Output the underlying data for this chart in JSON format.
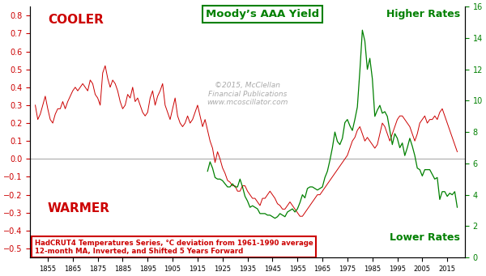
{
  "title": "Moody’s AAA Yield",
  "subtitle_line1": "©2015, McClellan",
  "subtitle_line2": "Financial Publications",
  "subtitle_line3": "www.mcoscillator.com",
  "label_cooler": "COOLER",
  "label_warmer": "WARMER",
  "label_higher": "Higher Rates",
  "label_lower": "Lower Rates",
  "caption_line1": "HadCRUT4 Temperatures Series, °C deviation from 1961-1990 average",
  "caption_line2": "12-month MA, Inverted, and Shifted 5 Years Forward",
  "left_ylim": [
    -0.55,
    0.85
  ],
  "right_ylim": [
    0,
    16
  ],
  "left_yticks": [
    -0.5,
    -0.4,
    -0.3,
    -0.2,
    -0.1,
    0,
    0.1,
    0.2,
    0.3,
    0.4,
    0.5,
    0.6,
    0.7,
    0.8
  ],
  "right_yticks": [
    0,
    2,
    4,
    6,
    8,
    10,
    12,
    14,
    16
  ],
  "color_red": "#CC0000",
  "color_green": "#008000",
  "color_gray": "#AAAAAA",
  "background": "#FFFFFF",
  "zero_line_color": "#AAAAAA",
  "temp_years": [
    1850,
    1851,
    1852,
    1853,
    1854,
    1855,
    1856,
    1857,
    1858,
    1859,
    1860,
    1861,
    1862,
    1863,
    1864,
    1865,
    1866,
    1867,
    1868,
    1869,
    1870,
    1871,
    1872,
    1873,
    1874,
    1875,
    1876,
    1877,
    1878,
    1879,
    1880,
    1881,
    1882,
    1883,
    1884,
    1885,
    1886,
    1887,
    1888,
    1889,
    1890,
    1891,
    1892,
    1893,
    1894,
    1895,
    1896,
    1897,
    1898,
    1899,
    1900,
    1901,
    1902,
    1903,
    1904,
    1905,
    1906,
    1907,
    1908,
    1909,
    1910,
    1911,
    1912,
    1913,
    1914,
    1915,
    1916,
    1917,
    1918,
    1919,
    1920,
    1921,
    1922,
    1923,
    1924,
    1925,
    1926,
    1927,
    1928,
    1929,
    1930,
    1931,
    1932,
    1933,
    1934,
    1935,
    1936,
    1937,
    1938,
    1939,
    1940,
    1941,
    1942,
    1943,
    1944,
    1945,
    1946,
    1947,
    1948,
    1949,
    1950,
    1951,
    1952,
    1953,
    1954,
    1955,
    1956,
    1957,
    1958,
    1959,
    1960,
    1961,
    1962,
    1963,
    1964,
    1965,
    1966,
    1967,
    1968,
    1969,
    1970,
    1971,
    1972,
    1973,
    1974,
    1975,
    1976,
    1977,
    1978,
    1979,
    1980,
    1981,
    1982,
    1983,
    1984,
    1985,
    1986,
    1987,
    1988,
    1989,
    1990,
    1991,
    1992,
    1993,
    1994,
    1995,
    1996,
    1997,
    1998,
    1999,
    2000,
    2001,
    2002,
    2003,
    2004,
    2005,
    2006,
    2007,
    2008,
    2009,
    2010,
    2011,
    2012,
    2013,
    2014,
    2015,
    2016,
    2017,
    2018,
    2019
  ],
  "temp_vals": [
    0.3,
    0.22,
    0.25,
    0.3,
    0.35,
    0.28,
    0.22,
    0.2,
    0.25,
    0.28,
    0.28,
    0.32,
    0.28,
    0.32,
    0.35,
    0.38,
    0.4,
    0.38,
    0.4,
    0.42,
    0.4,
    0.38,
    0.44,
    0.42,
    0.36,
    0.34,
    0.3,
    0.48,
    0.52,
    0.45,
    0.4,
    0.44,
    0.42,
    0.38,
    0.32,
    0.28,
    0.3,
    0.36,
    0.34,
    0.4,
    0.32,
    0.34,
    0.3,
    0.26,
    0.24,
    0.26,
    0.34,
    0.38,
    0.3,
    0.35,
    0.38,
    0.42,
    0.3,
    0.26,
    0.22,
    0.28,
    0.34,
    0.24,
    0.2,
    0.18,
    0.2,
    0.24,
    0.2,
    0.22,
    0.26,
    0.3,
    0.24,
    0.18,
    0.22,
    0.16,
    0.1,
    0.06,
    -0.02,
    0.04,
    0.0,
    -0.05,
    -0.08,
    -0.12,
    -0.13,
    -0.15,
    -0.15,
    -0.18,
    -0.18,
    -0.15,
    -0.15,
    -0.18,
    -0.2,
    -0.22,
    -0.22,
    -0.24,
    -0.26,
    -0.22,
    -0.22,
    -0.2,
    -0.18,
    -0.2,
    -0.22,
    -0.25,
    -0.26,
    -0.28,
    -0.28,
    -0.26,
    -0.24,
    -0.26,
    -0.28,
    -0.3,
    -0.32,
    -0.32,
    -0.3,
    -0.28,
    -0.26,
    -0.24,
    -0.22,
    -0.2,
    -0.2,
    -0.18,
    -0.16,
    -0.14,
    -0.12,
    -0.1,
    -0.08,
    -0.06,
    -0.04,
    -0.02,
    0.0,
    0.02,
    0.06,
    0.1,
    0.12,
    0.16,
    0.18,
    0.14,
    0.1,
    0.12,
    0.1,
    0.08,
    0.06,
    0.08,
    0.14,
    0.2,
    0.18,
    0.14,
    0.1,
    0.14,
    0.18,
    0.22,
    0.24,
    0.24,
    0.22,
    0.2,
    0.18,
    0.14,
    0.1,
    0.14,
    0.2,
    0.22,
    0.24,
    0.2,
    0.22,
    0.22,
    0.24,
    0.22,
    0.26,
    0.28,
    0.24,
    0.2,
    0.16,
    0.12,
    0.08,
    0.04
  ],
  "bond_years": [
    1919,
    1920,
    1921,
    1922,
    1923,
    1924,
    1925,
    1926,
    1927,
    1928,
    1929,
    1930,
    1931,
    1932,
    1933,
    1934,
    1935,
    1936,
    1937,
    1938,
    1939,
    1940,
    1941,
    1942,
    1943,
    1944,
    1945,
    1946,
    1947,
    1948,
    1949,
    1950,
    1951,
    1952,
    1953,
    1954,
    1955,
    1956,
    1957,
    1958,
    1959,
    1960,
    1961,
    1962,
    1963,
    1964,
    1965,
    1966,
    1967,
    1968,
    1969,
    1970,
    1971,
    1972,
    1973,
    1974,
    1975,
    1976,
    1977,
    1978,
    1979,
    1980,
    1981,
    1982,
    1983,
    1984,
    1985,
    1986,
    1987,
    1988,
    1989,
    1990,
    1991,
    1992,
    1993,
    1994,
    1995,
    1996,
    1997,
    1998,
    1999,
    2000,
    2001,
    2002,
    2003,
    2004,
    2005,
    2006,
    2007,
    2008,
    2009,
    2010,
    2011,
    2012,
    2013,
    2014,
    2015,
    2016,
    2017,
    2018,
    2019
  ],
  "bond_vals": [
    5.5,
    6.1,
    5.7,
    5.1,
    5.0,
    5.0,
    4.9,
    4.7,
    4.5,
    4.5,
    4.7,
    4.5,
    4.5,
    5.0,
    4.5,
    3.9,
    3.6,
    3.2,
    3.3,
    3.2,
    3.1,
    2.8,
    2.8,
    2.8,
    2.7,
    2.7,
    2.6,
    2.5,
    2.6,
    2.8,
    2.7,
    2.6,
    2.9,
    3.0,
    3.1,
    2.9,
    3.1,
    3.5,
    4.0,
    3.8,
    4.4,
    4.5,
    4.5,
    4.4,
    4.3,
    4.4,
    4.5,
    5.1,
    5.5,
    6.2,
    7.0,
    8.0,
    7.4,
    7.2,
    7.6,
    8.6,
    8.8,
    8.4,
    8.1,
    8.8,
    9.6,
    11.9,
    14.5,
    13.8,
    12.0,
    12.7,
    11.4,
    9.0,
    9.4,
    9.7,
    9.2,
    9.3,
    9.0,
    8.1,
    7.2,
    7.9,
    7.6,
    7.0,
    7.3,
    6.5,
    7.0,
    7.6,
    7.1,
    6.5,
    5.7,
    5.6,
    5.2,
    5.6,
    5.6,
    5.6,
    5.3,
    5.0,
    5.1,
    3.7,
    4.2,
    4.2,
    3.9,
    4.1,
    4.0,
    4.2,
    3.2
  ]
}
